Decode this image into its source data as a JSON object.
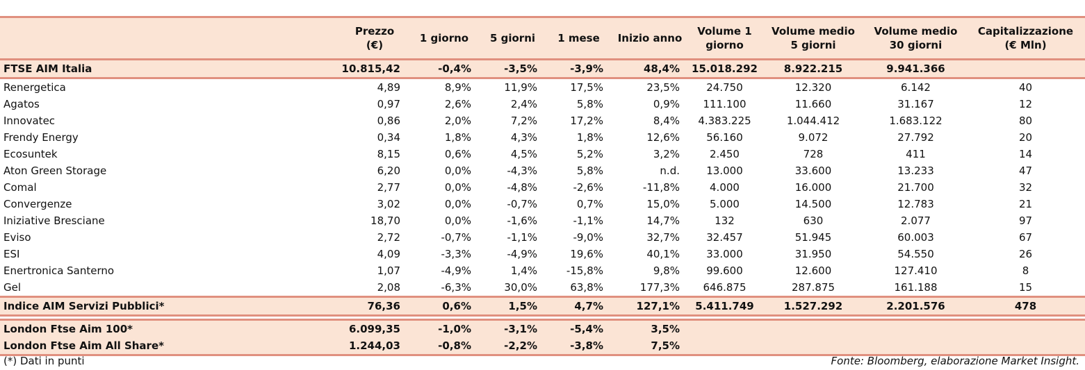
{
  "headers": [
    "",
    "Prezzo\n(€)",
    "1 giorno",
    "5 giorni",
    "1 mese",
    "Inizio anno",
    "Volume 1\ngiorno",
    "Volume medio\n5 giorni",
    "Volume medio\n30 giorni",
    "Capitalizzazione\n(€ Mln)"
  ],
  "index_top": [
    "FTSE AIM Italia",
    "10.815,42",
    "-0,4%",
    "-3,5%",
    "-3,9%",
    "48,4%",
    "15.018.292",
    "8.922.215",
    "9.941.366",
    ""
  ],
  "rows": [
    [
      "Renergetica",
      "4,89",
      "8,9%",
      "11,9%",
      "17,5%",
      "23,5%",
      "24.750",
      "12.320",
      "6.142",
      "40"
    ],
    [
      "Agatos",
      "0,97",
      "2,6%",
      "2,4%",
      "5,8%",
      "0,9%",
      "111.100",
      "11.660",
      "31.167",
      "12"
    ],
    [
      "Innovatec",
      "0,86",
      "2,0%",
      "7,2%",
      "17,2%",
      "8,4%",
      "4.383.225",
      "1.044.412",
      "1.683.122",
      "80"
    ],
    [
      "Frendy Energy",
      "0,34",
      "1,8%",
      "4,3%",
      "1,8%",
      "12,6%",
      "56.160",
      "9.072",
      "27.792",
      "20"
    ],
    [
      "Ecosuntek",
      "8,15",
      "0,6%",
      "4,5%",
      "5,2%",
      "3,2%",
      "2.450",
      "728",
      "411",
      "14"
    ],
    [
      "Aton Green Storage",
      "6,20",
      "0,0%",
      "-4,3%",
      "5,8%",
      "n.d.",
      "13.000",
      "33.600",
      "13.233",
      "47"
    ],
    [
      "Comal",
      "2,77",
      "0,0%",
      "-4,8%",
      "-2,6%",
      "-11,8%",
      "4.000",
      "16.000",
      "21.700",
      "32"
    ],
    [
      "Convergenze",
      "3,02",
      "0,0%",
      "-0,7%",
      "0,7%",
      "15,0%",
      "5.000",
      "14.500",
      "12.783",
      "21"
    ],
    [
      "Iniziative Bresciane",
      "18,70",
      "0,0%",
      "-1,6%",
      "-1,1%",
      "14,7%",
      "132",
      "630",
      "2.077",
      "97"
    ],
    [
      "Eviso",
      "2,72",
      "-0,7%",
      "-1,1%",
      "-9,0%",
      "32,7%",
      "32.457",
      "51.945",
      "60.003",
      "67"
    ],
    [
      "ESI",
      "4,09",
      "-3,3%",
      "-4,9%",
      "19,6%",
      "40,1%",
      "33.000",
      "31.950",
      "54.550",
      "26"
    ],
    [
      "Enertronica Santerno",
      "1,07",
      "-4,9%",
      "1,4%",
      "-15,8%",
      "9,8%",
      "99.600",
      "12.600",
      "127.410",
      "8"
    ],
    [
      "Gel",
      "2,08",
      "-6,3%",
      "30,0%",
      "63,8%",
      "177,3%",
      "646.875",
      "287.875",
      "161.188",
      "15"
    ]
  ],
  "index_sector": [
    "Indice AIM Servizi Pubblici*",
    "76,36",
    "0,6%",
    "1,5%",
    "4,7%",
    "127,1%",
    "5.411.749",
    "1.527.292",
    "2.201.576",
    "478"
  ],
  "london": [
    [
      "London Ftse Aim 100*",
      "6.099,35",
      "-1,0%",
      "-3,1%",
      "-5,4%",
      "3,5%",
      "",
      "",
      "",
      ""
    ],
    [
      "London Ftse Aim All Share*",
      "1.244,03",
      "-0,8%",
      "-2,2%",
      "-3,8%",
      "7,5%",
      "",
      "",
      "",
      ""
    ]
  ],
  "footnote": "(*) Dati in punti",
  "source": "Fonte: Bloomberg, elaborazione Market Insight."
}
